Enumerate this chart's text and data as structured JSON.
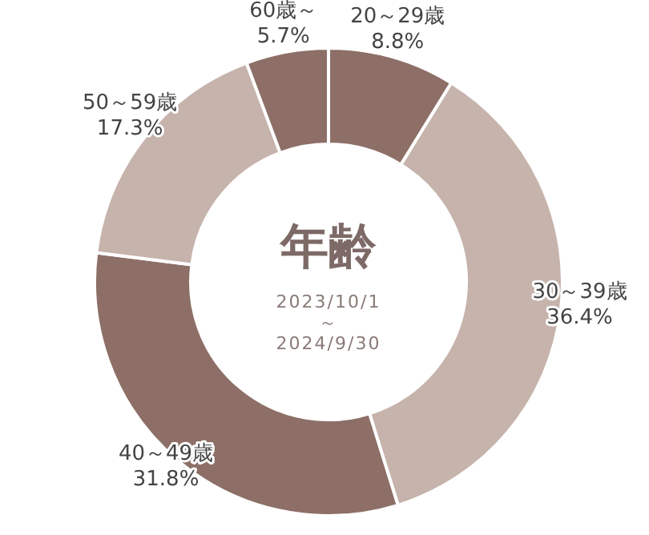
{
  "chart_data": {
    "type": "donut",
    "title": "年齢",
    "subtitle": "2023/10/1\n～\n2024/9/30",
    "categories": [
      "20～29歳",
      "30～39歳",
      "40～49歳",
      "50～59歳",
      "60歳～"
    ],
    "values": [
      8.8,
      36.4,
      31.8,
      17.3,
      5.7
    ],
    "value_labels": [
      "8.8%",
      "36.4%",
      "31.8%",
      "17.3%",
      "5.7%"
    ],
    "colors": [
      "#8d6f67",
      "#c6b3ac",
      "#8d6f67",
      "#c6b3ac",
      "#8d6f67"
    ]
  }
}
